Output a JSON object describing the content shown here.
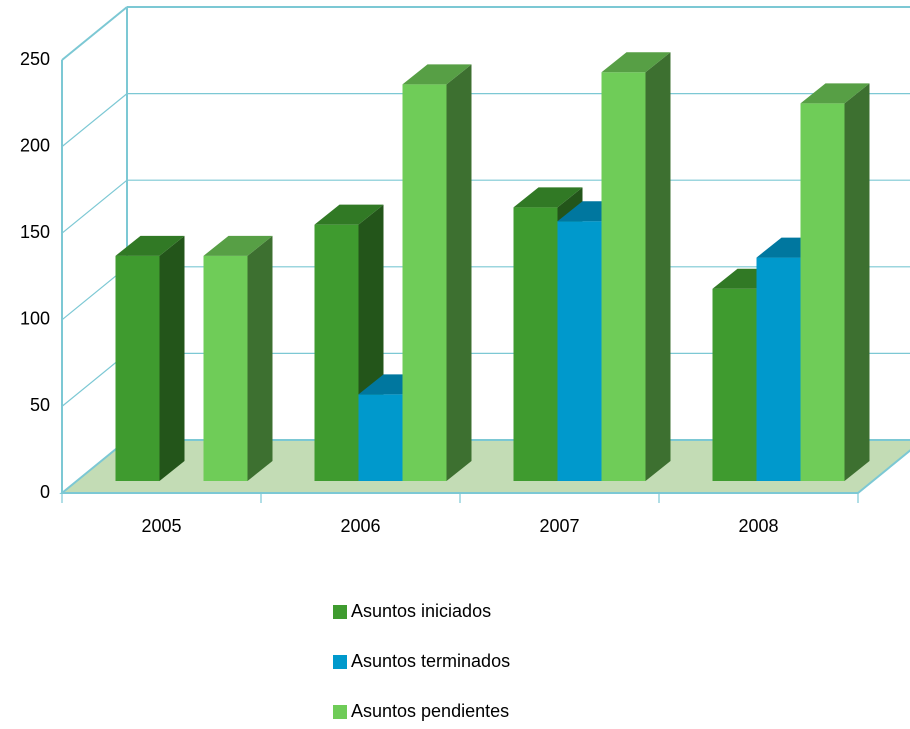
{
  "chart_data": {
    "type": "bar3d",
    "categories": [
      "2005",
      "2006",
      "2007",
      "2008"
    ],
    "series": [
      {
        "name": "Asuntos iniciados",
        "color": "#3f9b2f",
        "values": [
          130,
          148,
          158,
          111
        ]
      },
      {
        "name": "Asuntos terminados",
        "color": "#0099cc",
        "values": [
          0,
          50,
          150,
          129
        ]
      },
      {
        "name": "Asuntos pendientes",
        "color": "#6fcc58",
        "values": [
          130,
          229,
          236,
          218
        ]
      }
    ],
    "ylim": [
      0,
      250
    ],
    "yticks": [
      0,
      50,
      100,
      150,
      200,
      250
    ],
    "grid": true,
    "legend": "bottom"
  }
}
